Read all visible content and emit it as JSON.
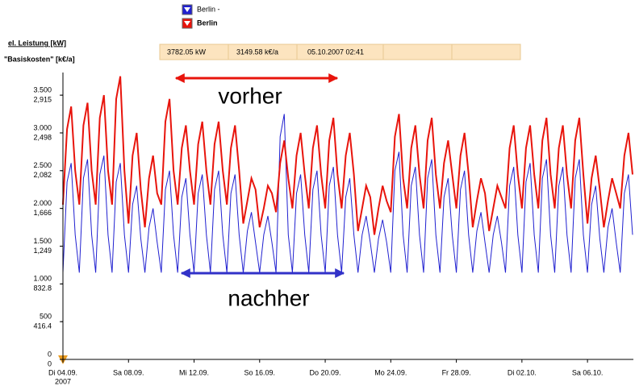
{
  "chart_data": {
    "type": "line",
    "ylabel": "el. Leistung [kW]",
    "y2label": "\"Basiskosten\" [k€/a]",
    "info": [
      "3782.05 kW",
      "3149.58 k€/a",
      "05.10.2007 02:41"
    ],
    "annotations": [
      {
        "text": "vorher",
        "color": "#e8140c"
      },
      {
        "text": "nachher",
        "color": "#3232c8"
      }
    ],
    "xlim": [
      0,
      34.8
    ],
    "xticks": [
      {
        "value": 0,
        "label": "Di 04.09."
      },
      {
        "value": 4,
        "label": "Sa 08.09."
      },
      {
        "value": 8,
        "label": "Mi 12.09."
      },
      {
        "value": 12,
        "label": "So 16.09.",
        "color": "#e8140c"
      },
      {
        "value": 16,
        "label": "Do 20.09."
      },
      {
        "value": 20,
        "label": "Mo 24.09."
      },
      {
        "value": 24,
        "label": "Fr 28.09."
      },
      {
        "value": 28,
        "label": "Di 02.10."
      },
      {
        "value": 32,
        "label": "Sa 06.10."
      }
    ],
    "xtick_sublabel": "2007",
    "ylim": [
      0,
      3800
    ],
    "yticks": [
      0,
      500,
      {
        "value": 1000,
        "label": "1.000"
      },
      {
        "value": 1500,
        "label": "1.500"
      },
      {
        "value": 2000,
        "label": "2.000"
      },
      {
        "value": 2500,
        "label": "2.500"
      },
      {
        "value": 3000,
        "label": "3.000"
      },
      {
        "value": 3500,
        "label": "3.500"
      }
    ],
    "y2lim": [
      0,
      3164.64
    ],
    "y2ticks": [
      0,
      416.4,
      832.8,
      {
        "value": 1249.2,
        "label": "1,249"
      },
      {
        "value": 1665.6,
        "label": "1,666"
      },
      {
        "value": 2082,
        "label": "2,082"
      },
      {
        "value": 2498.4,
        "label": "2,498"
      },
      {
        "value": 2914.8,
        "label": "2,915"
      }
    ],
    "x": [
      0,
      0.25,
      0.5,
      0.75,
      1,
      1.25,
      1.5,
      1.75,
      2,
      2.25,
      2.5,
      2.75,
      3,
      3.25,
      3.5,
      3.75,
      4,
      4.25,
      4.5,
      4.75,
      5,
      5.25,
      5.5,
      5.75,
      6,
      6.25,
      6.5,
      6.75,
      7,
      7.25,
      7.5,
      7.75,
      8,
      8.25,
      8.5,
      8.75,
      9,
      9.25,
      9.5,
      9.75,
      10,
      10.25,
      10.5,
      10.75,
      11,
      11.25,
      11.5,
      11.75,
      12,
      12.25,
      12.5,
      12.75,
      13,
      13.25,
      13.5,
      13.75,
      14,
      14.25,
      14.5,
      14.75,
      15,
      15.25,
      15.5,
      15.75,
      16,
      16.25,
      16.5,
      16.75,
      17,
      17.25,
      17.5,
      17.75,
      18,
      18.25,
      18.5,
      18.75,
      19,
      19.25,
      19.5,
      19.75,
      20,
      20.25,
      20.5,
      20.75,
      21,
      21.25,
      21.5,
      21.75,
      22,
      22.25,
      22.5,
      22.75,
      23,
      23.25,
      23.5,
      23.75,
      24,
      24.25,
      24.5,
      24.75,
      25,
      25.25,
      25.5,
      25.75,
      26,
      26.25,
      26.5,
      26.75,
      27,
      27.25,
      27.5,
      27.75,
      28,
      28.25,
      28.5,
      28.75,
      29,
      29.25,
      29.5,
      29.75,
      30,
      30.25,
      30.5,
      30.75,
      31,
      31.25,
      31.5,
      31.75,
      32,
      32.25,
      32.5,
      32.75,
      33,
      33.25,
      33.5,
      33.75,
      34,
      34.25,
      34.5,
      34.75
    ],
    "series": [
      {
        "name": "Berlin -",
        "color": "#2020d0",
        "values": [
          1150,
          2350,
          2600,
          1650,
          1150,
          2400,
          2650,
          1650,
          1150,
          2450,
          2700,
          1650,
          1150,
          2350,
          2600,
          1650,
          1150,
          2050,
          2300,
          1600,
          1150,
          1750,
          2000,
          1550,
          1150,
          2250,
          2500,
          1650,
          1150,
          2150,
          2400,
          1650,
          1150,
          2200,
          2450,
          1650,
          1150,
          2250,
          2500,
          1650,
          1150,
          2200,
          2450,
          1650,
          1150,
          1700,
          1950,
          1550,
          1150,
          1650,
          1900,
          1550,
          1150,
          2950,
          3250,
          1650,
          1150,
          2200,
          2450,
          1650,
          1150,
          2250,
          2500,
          1650,
          1150,
          2300,
          2550,
          1650,
          1150,
          2150,
          2400,
          1650,
          1150,
          1650,
          1900,
          1550,
          1150,
          1600,
          1850,
          1550,
          1150,
          2500,
          2750,
          1650,
          1150,
          2300,
          2550,
          1650,
          1150,
          2400,
          2650,
          1650,
          1150,
          2150,
          2400,
          1650,
          1150,
          2250,
          2500,
          1650,
          1150,
          1700,
          1950,
          1550,
          1150,
          1650,
          1900,
          1550,
          1150,
          2300,
          2550,
          1650,
          1150,
          2350,
          2600,
          1650,
          1150,
          2400,
          2650,
          1650,
          1150,
          2300,
          2550,
          1650,
          1150,
          2400,
          2650,
          1650,
          1150,
          2050,
          2300,
          1600,
          1150,
          1750,
          2000,
          1550,
          1150,
          2200,
          2450,
          1650
        ]
      },
      {
        "name": "Berlin",
        "color": "#e8140c",
        "values": [
          2050,
          3050,
          3350,
          2500,
          2050,
          3100,
          3400,
          2500,
          2050,
          3200,
          3500,
          2500,
          2050,
          3450,
          3750,
          2500,
          1800,
          2700,
          3000,
          2250,
          1750,
          2400,
          2700,
          2200,
          2050,
          3150,
          3450,
          2500,
          2050,
          2800,
          3100,
          2500,
          2050,
          2850,
          3150,
          2500,
          2050,
          2850,
          3150,
          2500,
          2050,
          2800,
          3100,
          2500,
          1800,
          2100,
          2400,
          2250,
          1750,
          2000,
          2300,
          2200,
          1950,
          2600,
          2900,
          2400,
          2000,
          2700,
          3000,
          2450,
          2000,
          2800,
          3100,
          2450,
          2000,
          2900,
          3200,
          2450,
          2000,
          2700,
          3000,
          2450,
          1700,
          2000,
          2300,
          2150,
          1650,
          2000,
          2300,
          2100,
          1950,
          2950,
          3250,
          2400,
          2000,
          2800,
          3100,
          2450,
          2000,
          2900,
          3200,
          2450,
          2000,
          2600,
          2900,
          2450,
          2000,
          2700,
          3000,
          2450,
          1750,
          2100,
          2400,
          2200,
          1700,
          2000,
          2300,
          2150,
          2000,
          2800,
          3100,
          2450,
          2000,
          2800,
          3100,
          2450,
          2000,
          2900,
          3200,
          2450,
          2000,
          2800,
          3100,
          2450,
          2000,
          2900,
          3200,
          2450,
          1800,
          2400,
          2700,
          2250,
          1750,
          2100,
          2400,
          2200,
          2000,
          2700,
          3000,
          2450
        ]
      }
    ]
  }
}
